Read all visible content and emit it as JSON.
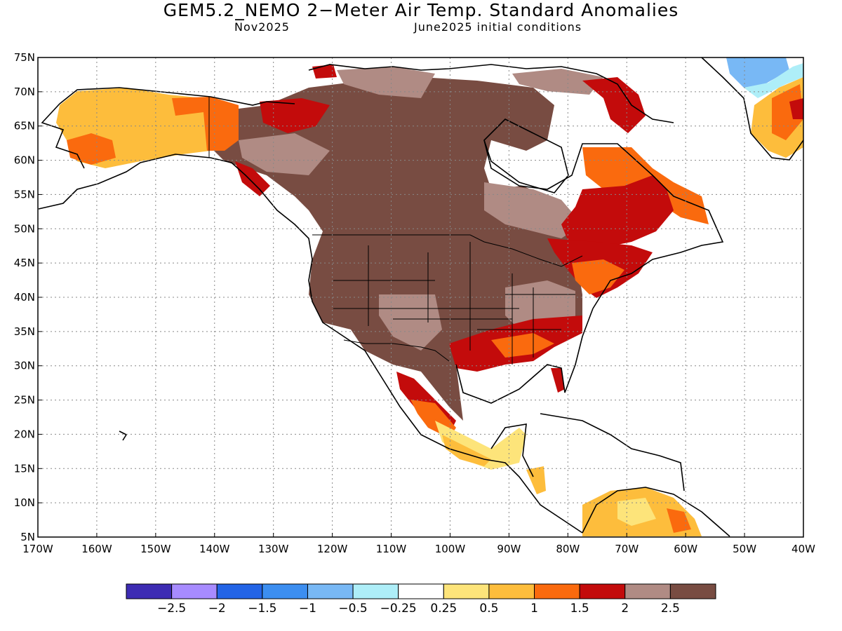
{
  "title": "GEM5.2_NEMO 2−Meter Air Temp. Standard Anomalies",
  "valid_month": "Nov2025",
  "init_text": "June2025 initial conditions",
  "map": {
    "lat_labels": [
      "75N",
      "70N",
      "65N",
      "60N",
      "55N",
      "50N",
      "45N",
      "40N",
      "35N",
      "30N",
      "25N",
      "20N",
      "15N",
      "10N",
      "5N"
    ],
    "lon_labels": [
      "170W",
      "160W",
      "150W",
      "140W",
      "130W",
      "120W",
      "110W",
      "100W",
      "90W",
      "80W",
      "70W",
      "60W",
      "50W",
      "40W"
    ]
  },
  "colorbar": {
    "colors": [
      "#3d2cb3",
      "#a78bff",
      "#2364e6",
      "#3c8ef0",
      "#78b8f5",
      "#aeeef8",
      "#ffffff",
      "#fde47a",
      "#fdbd3c",
      "#fa6a0e",
      "#c30b0b",
      "#b08b84",
      "#784c42"
    ],
    "labels": [
      "−2.5",
      "−2",
      "−1.5",
      "−1",
      "−0.5",
      "−0.25",
      "0.25",
      "0.5",
      "1",
      "1.5",
      "2",
      "2.5"
    ]
  },
  "colors": {
    "brown": "#784c42",
    "light_brown": "#b08b84",
    "red": "#c30b0b",
    "orange": "#fa6a0e",
    "light_orange": "#fdbd3c",
    "yellow": "#fde47a",
    "blue": "#78b8f5"
  }
}
